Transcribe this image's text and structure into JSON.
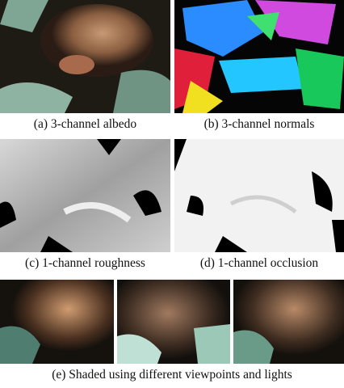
{
  "subfigures": [
    {
      "caption": "(a) 3-channel albedo"
    },
    {
      "caption": "(b) 3-channel normals"
    },
    {
      "caption": "(c) 1-channel roughness"
    },
    {
      "caption": "(d) 1-channel occlusion"
    },
    {
      "caption": "(e) Shaded using different viewpoints and lights"
    }
  ]
}
